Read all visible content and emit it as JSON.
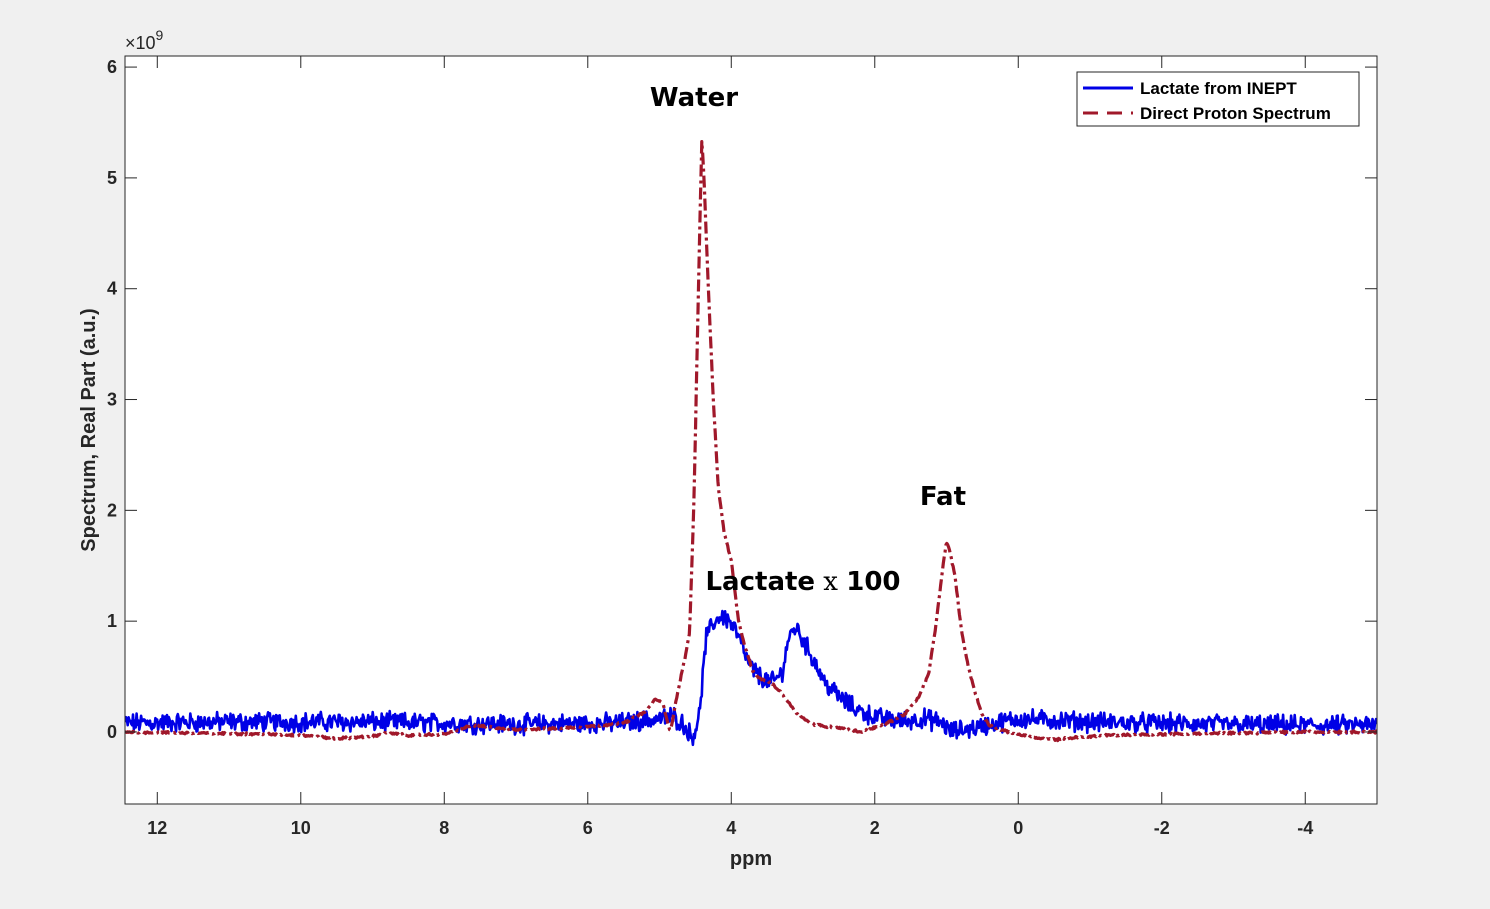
{
  "chart_data": {
    "type": "line",
    "title": "",
    "xlabel": "ppm",
    "ylabel": "Spectrum, Real Part (a.u.)",
    "xlim": [
      12.45,
      -5.0
    ],
    "ylim": [
      -0.65,
      6.1
    ],
    "x_reversed": true,
    "y_scale_label": "×10",
    "y_scale_exponent": "9",
    "x_ticks": [
      12,
      10,
      8,
      6,
      4,
      2,
      0,
      -2,
      -4
    ],
    "x_tick_labels": [
      "12",
      "10",
      "8",
      "6",
      "4",
      "2",
      "0",
      "-2",
      "-4"
    ],
    "y_ticks": [
      0,
      1,
      2,
      3,
      4,
      5,
      6
    ],
    "y_tick_labels": [
      "0",
      "1",
      "2",
      "3",
      "4",
      "5",
      "6"
    ],
    "grid": false,
    "legend_position": "top-right",
    "series": [
      {
        "name": "Lactate from INEPT",
        "color": "#0000e6",
        "style": "solid",
        "noise_amplitude": 0.07,
        "x": [
          12.45,
          11.0,
          9.0,
          7.0,
          5.6,
          5.0,
          4.8,
          4.65,
          4.55,
          4.45,
          4.35,
          4.25,
          4.15,
          4.05,
          3.95,
          3.85,
          3.75,
          3.6,
          3.45,
          3.3,
          3.2,
          3.1,
          3.0,
          2.85,
          2.7,
          2.5,
          2.3,
          2.1,
          1.9,
          1.6,
          1.3,
          1.05,
          0.95,
          0.6,
          0.3,
          0.0,
          -1.0,
          -2.5,
          -4.0,
          -5.0
        ],
        "values": [
          0.08,
          0.09,
          0.09,
          0.07,
          0.08,
          0.12,
          0.14,
          0.06,
          -0.05,
          0.12,
          0.85,
          0.98,
          1.05,
          1.02,
          0.93,
          0.78,
          0.6,
          0.5,
          0.44,
          0.52,
          0.85,
          0.95,
          0.83,
          0.65,
          0.45,
          0.32,
          0.22,
          0.16,
          0.12,
          0.1,
          0.12,
          0.08,
          0.0,
          0.04,
          0.08,
          0.12,
          0.09,
          0.07,
          0.06,
          0.06
        ]
      },
      {
        "name": "Direct Proton Spectrum",
        "color": "#a0182a",
        "style": "dashdot",
        "noise_amplitude": 0.008,
        "x": [
          12.45,
          11.5,
          10.5,
          10.0,
          9.5,
          9.0,
          8.8,
          8.5,
          8.0,
          7.6,
          7.0,
          6.5,
          6.0,
          5.5,
          5.2,
          5.05,
          4.95,
          4.85,
          4.75,
          4.65,
          4.58,
          4.52,
          4.47,
          4.43,
          4.41,
          4.38,
          4.32,
          4.25,
          4.18,
          4.1,
          4.0,
          3.9,
          3.8,
          3.7,
          3.6,
          3.45,
          3.3,
          3.1,
          2.9,
          2.7,
          2.5,
          2.2,
          1.9,
          1.6,
          1.4,
          1.25,
          1.15,
          1.05,
          1.0,
          0.95,
          0.88,
          0.8,
          0.7,
          0.6,
          0.5,
          0.4,
          0.2,
          0.0,
          -0.3,
          -0.5,
          -0.8,
          -1.2,
          -2.0,
          -3.0,
          -4.0,
          -5.0
        ],
        "values": [
          0.0,
          -0.01,
          -0.02,
          -0.03,
          -0.06,
          -0.04,
          -0.01,
          -0.03,
          -0.02,
          0.06,
          0.02,
          0.03,
          0.05,
          0.08,
          0.18,
          0.3,
          0.25,
          0.0,
          0.35,
          0.65,
          0.9,
          2.1,
          3.6,
          4.8,
          5.35,
          5.0,
          4.0,
          3.0,
          2.2,
          1.8,
          1.55,
          1.0,
          0.75,
          0.55,
          0.48,
          0.45,
          0.35,
          0.18,
          0.08,
          0.05,
          0.04,
          0.0,
          0.06,
          0.15,
          0.3,
          0.52,
          0.95,
          1.5,
          1.72,
          1.62,
          1.4,
          0.95,
          0.6,
          0.35,
          0.15,
          0.06,
          0.01,
          -0.02,
          -0.06,
          -0.07,
          -0.05,
          -0.03,
          -0.02,
          -0.01,
          0.0,
          0.0
        ]
      }
    ],
    "annotations": [
      {
        "text": "Water",
        "x": 4.52,
        "y": 5.65
      },
      {
        "text": "Lactate",
        "suffix": " x ",
        "tail": "100",
        "x": 3.0,
        "y": 1.28
      },
      {
        "text": "Fat",
        "x": 1.05,
        "y": 2.05
      }
    ]
  }
}
